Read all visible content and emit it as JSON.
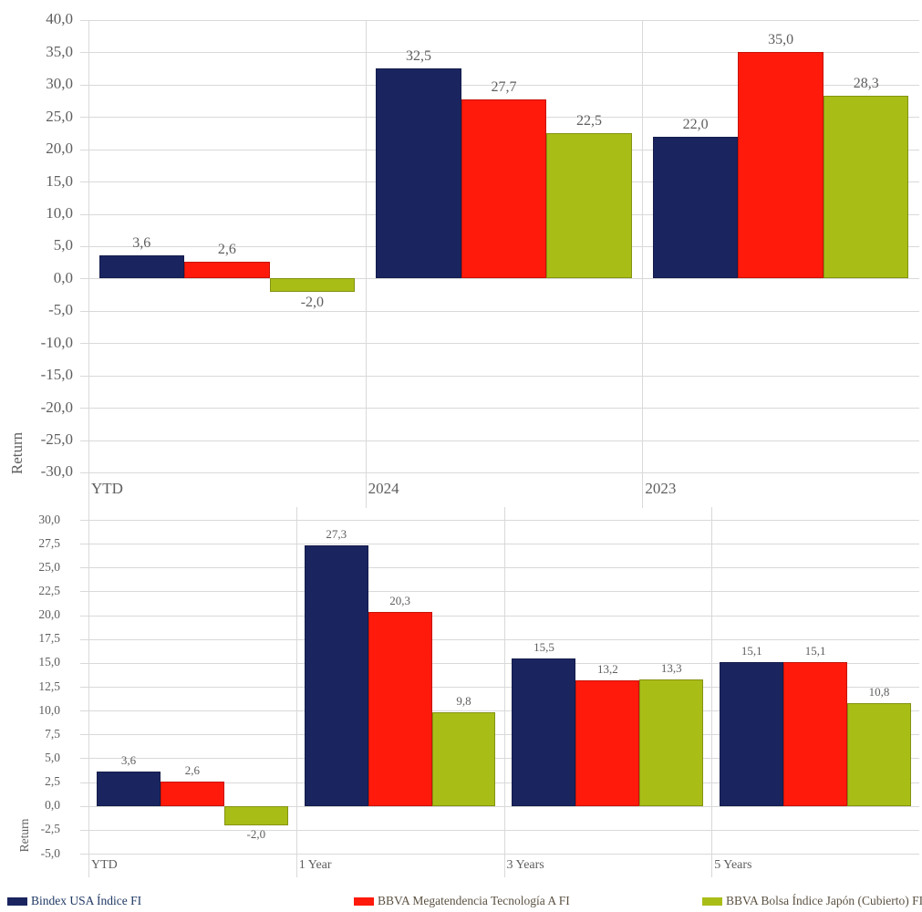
{
  "page": {
    "background": "#ffffff"
  },
  "axis_text_color": "#5e5e5e",
  "gridline_color": "#d9d9d9",
  "legend": {
    "items": [
      {
        "label": "Bindex USA Índice FI",
        "color": "#1a2560",
        "text_color": "#1f3864",
        "swatch": "navy-swatch"
      },
      {
        "label": "BBVA Megatendencia Tecnología A FI",
        "color": "#ff1a0b",
        "text_color": "#5b5142",
        "swatch": "red-swatch"
      },
      {
        "label": "BBVA Bolsa Índice Japón (Cubierto) FI",
        "color": "#a9bd17",
        "text_color": "#5b5142",
        "swatch": "green-swatch"
      }
    ]
  },
  "chart_data": [
    {
      "id": "calendar-year-returns",
      "type": "bar",
      "title": "",
      "xlabel": "",
      "ylabel": "Return",
      "categories": [
        "YTD",
        "2024",
        "2023"
      ],
      "series": [
        {
          "name": "Bindex USA Índice FI",
          "color": "#1a2560",
          "values": [
            3.6,
            32.5,
            22.0
          ]
        },
        {
          "name": "BBVA Megatendencia Tecnología A FI",
          "color": "#ff1a0b",
          "values": [
            2.6,
            27.7,
            35.0
          ]
        },
        {
          "name": "BBVA Bolsa Índice Japón (Cubierto) FI",
          "color": "#a9bd17",
          "values": [
            -2.0,
            22.5,
            28.3
          ]
        }
      ],
      "data_labels": [
        [
          "3,6",
          "32,5",
          "22,0"
        ],
        [
          "2,6",
          "27,7",
          "35,0"
        ],
        [
          "-2,0",
          "22,5",
          "28,3"
        ]
      ],
      "ylim": [
        -30.0,
        40.0
      ],
      "ytick_step": 5.0,
      "ytick_labels": [
        "40,0",
        "35,0",
        "30,0",
        "25,0",
        "20,0",
        "15,0",
        "10,0",
        "5,0",
        "0,0",
        "-5,0",
        "-10,0",
        "-15,0",
        "-20,0",
        "-25,0",
        "-30,0"
      ],
      "decimal_comma": true,
      "grid": true,
      "legend_position": "shared-bottom"
    },
    {
      "id": "trailing-returns",
      "type": "bar",
      "title": "",
      "xlabel": "",
      "ylabel": "Return",
      "categories": [
        "YTD",
        "1 Year",
        "3 Years",
        "5 Years"
      ],
      "series": [
        {
          "name": "Bindex USA Índice FI",
          "color": "#1a2560",
          "values": [
            3.6,
            27.3,
            15.5,
            15.1
          ]
        },
        {
          "name": "BBVA Megatendencia Tecnología A FI",
          "color": "#ff1a0b",
          "values": [
            2.6,
            20.3,
            13.2,
            15.1
          ]
        },
        {
          "name": "BBVA Bolsa Índice Japón (Cubierto) FI",
          "color": "#a9bd17",
          "values": [
            -2.0,
            9.8,
            13.3,
            10.8
          ]
        }
      ],
      "data_labels": [
        [
          "3,6",
          "27,3",
          "15,5",
          "15,1"
        ],
        [
          "2,6",
          "20,3",
          "13,2",
          "15,1"
        ],
        [
          "-2,0",
          "9,8",
          "13,3",
          "10,8"
        ]
      ],
      "ylim": [
        -5.0,
        30.0
      ],
      "ytick_step": 2.5,
      "ytick_labels": [
        "30,0",
        "27,5",
        "25,0",
        "22,5",
        "20,0",
        "17,5",
        "15,0",
        "12,5",
        "10,0",
        "7,5",
        "5,0",
        "2,5",
        "0,0",
        "-2,5",
        "-5,0"
      ],
      "decimal_comma": true,
      "grid": true,
      "legend_position": "shared-bottom"
    }
  ]
}
